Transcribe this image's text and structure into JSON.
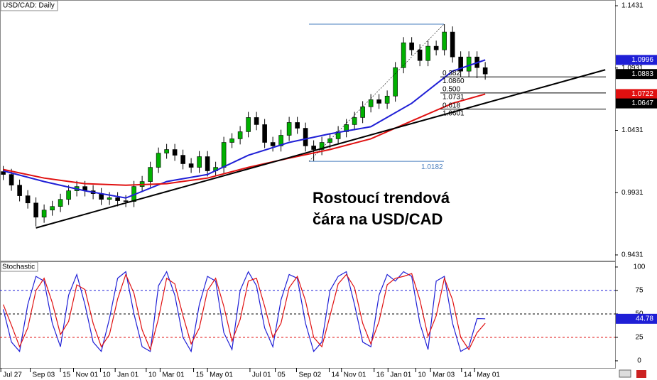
{
  "chart_data": [
    {
      "type": "candlestick",
      "title": "USD/CAD: Daily",
      "open": [
        1.01,
        1.0077,
        0.9991,
        0.9906,
        0.9848,
        0.9734,
        0.9791,
        0.982,
        0.9877,
        0.9946,
        0.998,
        0.9946,
        0.9923,
        0.9877,
        0.989,
        0.9866,
        0.986,
        0.998,
        1.002,
        1.0134,
        1.0248,
        1.0277,
        1.0231,
        1.0163,
        1.0134,
        1.022,
        1.0106,
        1.0134,
        1.0334,
        1.0363,
        1.042,
        1.0534,
        1.0477,
        1.0334,
        1.0306,
        1.0391,
        1.0494,
        1.0448,
        1.0306,
        1.0277,
        1.0334,
        1.0363,
        1.042,
        1.0477,
        1.0534,
        1.062,
        1.0677,
        1.0648,
        1.0706,
        1.0934,
        1.1134,
        1.1077,
        1.0991,
        1.1106,
        1.1077,
        1.122,
        1.102,
        1.0906,
        1.102,
        1.0934
      ],
      "high": [
        1.0145,
        1.0122,
        1.0036,
        0.9951,
        0.9893,
        0.9836,
        0.9865,
        0.9922,
        0.9991,
        1.0025,
        1.0025,
        0.9991,
        0.9968,
        0.9935,
        0.9935,
        0.9911,
        1.0025,
        1.0065,
        1.0179,
        1.0293,
        1.0322,
        1.0322,
        1.0276,
        1.0208,
        1.0265,
        1.0265,
        1.0179,
        1.0379,
        1.0408,
        1.0465,
        1.0579,
        1.0579,
        1.0522,
        1.0379,
        1.0436,
        1.0539,
        1.0539,
        1.0493,
        1.0351,
        1.0379,
        1.0408,
        1.0465,
        1.0522,
        1.0579,
        1.0665,
        1.0722,
        1.0722,
        1.0751,
        1.0979,
        1.1179,
        1.1179,
        1.1122,
        1.1151,
        1.1151,
        1.1283,
        1.1265,
        1.1065,
        1.1065,
        1.1065,
        1.0979
      ],
      "low": [
        1.0032,
        0.9946,
        0.9861,
        0.9803,
        0.966,
        0.9689,
        0.9746,
        0.9775,
        0.9832,
        0.9901,
        0.9901,
        0.9878,
        0.9832,
        0.9832,
        0.9821,
        0.9815,
        0.9815,
        0.9935,
        0.9975,
        1.0089,
        1.0203,
        1.0186,
        1.0118,
        1.0089,
        1.0089,
        1.0061,
        1.0061,
        1.0089,
        1.0289,
        1.0318,
        1.0375,
        1.0432,
        1.0289,
        1.0261,
        1.0261,
        1.0346,
        1.0403,
        1.0261,
        1.0182,
        1.0232,
        1.0289,
        1.0318,
        1.0375,
        1.0432,
        1.0489,
        1.0575,
        1.0603,
        1.0603,
        1.0661,
        1.0889,
        1.1032,
        1.0946,
        1.0946,
        1.1032,
        1.1032,
        1.0975,
        1.0861,
        1.0861,
        1.085,
        1.0838
      ],
      "close": [
        1.0077,
        0.9991,
        0.9906,
        0.9848,
        0.9734,
        0.9791,
        0.982,
        0.9877,
        0.9946,
        0.998,
        0.9946,
        0.9923,
        0.9877,
        0.989,
        0.9866,
        0.986,
        0.998,
        1.002,
        1.0134,
        1.0248,
        1.0277,
        1.0231,
        1.0163,
        1.0134,
        1.022,
        1.0106,
        1.0134,
        1.0334,
        1.0363,
        1.042,
        1.0534,
        1.0477,
        1.0334,
        1.0306,
        1.0391,
        1.0494,
        1.0448,
        1.0306,
        1.0277,
        1.0334,
        1.0363,
        1.042,
        1.0477,
        1.0534,
        1.062,
        1.0677,
        1.0648,
        1.0706,
        1.0934,
        1.1134,
        1.1077,
        1.0991,
        1.1106,
        1.1077,
        1.122,
        1.102,
        1.0906,
        1.102,
        1.0934,
        1.0883
      ],
      "up_color": "#00b000",
      "down_color": "#000000",
      "xlim": [
        -0.4,
        74.9
      ],
      "ylim": [
        0.9385,
        1.1477
      ],
      "yticks": [
        1.1431,
        1.0931,
        1.0431,
        0.9931,
        0.9431
      ],
      "series": [
        {
          "color": "#1f1fd6",
          "x": [
            0,
            5,
            10,
            15,
            20,
            25,
            30,
            35,
            40,
            45,
            50,
            55,
            59
          ],
          "values": [
            1.0106,
            1.002,
            0.9946,
            0.9888,
            1.002,
            1.0077,
            1.0231,
            1.0334,
            1.0403,
            1.046,
            1.0648,
            1.0906,
            1.0996
          ]
        },
        {
          "color": "#e01010",
          "x": [
            0,
            5,
            10,
            15,
            20,
            25,
            30,
            35,
            40,
            45,
            50,
            55,
            59
          ],
          "values": [
            1.0117,
            1.0048,
            1.0003,
            0.9991,
            1.0003,
            1.0048,
            1.0134,
            1.0208,
            1.0277,
            1.0363,
            1.0506,
            1.0648,
            1.0722
          ]
        },
        {
          "color": "#000000",
          "x": [
            4,
            73.7
          ],
          "values": [
            0.9648,
            1.0917
          ]
        }
      ],
      "trendline_current": 1.0647,
      "fib": {
        "high": 1.1283,
        "low": 1.0182,
        "levels": [
          1.086,
          1.0731,
          1.0601
        ],
        "ratio_labels": [
          "0.382",
          "0.500",
          "0.618"
        ],
        "value_labels": [
          "1.0860",
          "1.0731",
          "1.0601"
        ],
        "color": "#4a7fbf"
      },
      "annotation": [
        "Rostoucí trendová",
        "čára na USD/CAD"
      ]
    },
    {
      "type": "line",
      "title": "Stochastic",
      "xlim": [
        -0.4,
        74.9
      ],
      "ylim": [
        -7.6,
        106
      ],
      "yticks": [
        0,
        25,
        50,
        75,
        100
      ],
      "levels": [
        75,
        50,
        25
      ],
      "level_colors": [
        "#1f1fd6",
        "#000000",
        "#e01010"
      ],
      "series": [
        {
          "color": "#1f1fd6",
          "values": [
            55,
            20,
            10,
            60,
            90,
            85,
            40,
            15,
            70,
            92,
            60,
            20,
            10,
            45,
            88,
            95,
            50,
            15,
            10,
            80,
            95,
            70,
            25,
            10,
            60,
            90,
            85,
            30,
            12,
            75,
            95,
            80,
            35,
            15,
            65,
            92,
            88,
            40,
            10,
            20,
            75,
            90,
            95,
            60,
            20,
            15,
            70,
            92,
            85,
            95,
            90,
            40,
            12,
            85,
            90,
            40,
            10,
            15,
            45,
            44.78
          ]
        },
        {
          "color": "#e01010",
          "values": [
            60,
            38,
            15,
            35,
            75,
            88,
            62,
            28,
            42,
            81,
            76,
            40,
            15,
            28,
            66,
            92,
            72,
            33,
            12,
            45,
            88,
            82,
            48,
            18,
            35,
            75,
            88,
            58,
            21,
            44,
            85,
            88,
            58,
            25,
            40,
            78,
            90,
            64,
            25,
            15,
            48,
            82,
            92,
            78,
            40,
            18,
            42,
            81,
            88,
            90,
            93,
            65,
            26,
            48,
            88,
            65,
            25,
            12,
            30,
            40
          ]
        }
      ],
      "xticks": [
        {
          "value": -0.3,
          "label": "Jul 27"
        },
        {
          "value": 3.3,
          "label": "Sep 03"
        },
        {
          "value": 7.0,
          "label": "15"
        },
        {
          "value": 8.6,
          "label": "Nov 01"
        },
        {
          "value": 11.9,
          "label": "10"
        },
        {
          "value": 13.7,
          "label": "Jan 01"
        },
        {
          "value": 17.5,
          "label": "10"
        },
        {
          "value": 19.2,
          "label": "Mar 01"
        },
        {
          "value": 23.3,
          "label": "15"
        },
        {
          "value": 25.0,
          "label": "May 01"
        },
        {
          "value": 30.2,
          "label": "Jul 01"
        },
        {
          "value": 33.3,
          "label": "05"
        },
        {
          "value": 35.9,
          "label": "Sep 02"
        },
        {
          "value": 39.9,
          "label": "14"
        },
        {
          "value": 41.4,
          "label": "Nov 01"
        },
        {
          "value": 45.4,
          "label": "16"
        },
        {
          "value": 47.1,
          "label": "Jan 01"
        },
        {
          "value": 50.5,
          "label": "10"
        },
        {
          "value": 52.3,
          "label": "Mar 03"
        },
        {
          "value": 56.1,
          "label": "14"
        },
        {
          "value": 57.7,
          "label": "May 01"
        }
      ]
    }
  ]
}
